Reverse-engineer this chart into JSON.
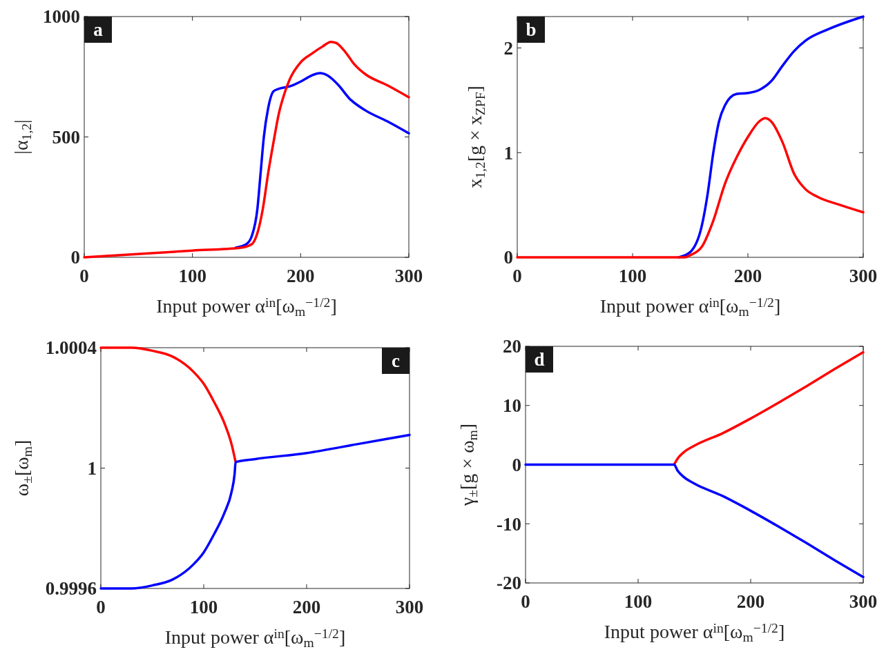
{
  "chart_data": [
    {
      "type": "line",
      "xlabel": "Input power α$^{in}$[ω$_{m}$$^{−1/2}$]",
      "ylabel": "|α$_{1,2}$|",
      "annotations": [
        "a"
      ],
      "xlim": [
        0,
        300
      ],
      "xticks": [
        0,
        100,
        200,
        300
      ],
      "ylim": [
        0,
        1000
      ],
      "yticks": [
        0,
        500,
        1000
      ],
      "grid": false,
      "legend": false,
      "series": [
        {
          "color": "#0000ff",
          "x": [
            140,
            150,
            155,
            160,
            163,
            166,
            170,
            175,
            180,
            190,
            200,
            210,
            218,
            225,
            235,
            245,
            260,
            280,
            300
          ],
          "values": [
            40,
            55,
            90,
            200,
            350,
            500,
            620,
            690,
            700,
            710,
            730,
            755,
            765,
            755,
            715,
            660,
            610,
            565,
            515
          ]
        },
        {
          "color": "#ff0000",
          "x": [
            0,
            100,
            145,
            155,
            160,
            165,
            170,
            175,
            180,
            185,
            190,
            200,
            210,
            220,
            228,
            233,
            240,
            250,
            260,
            280,
            300
          ],
          "values": [
            0,
            28,
            40,
            55,
            100,
            200,
            350,
            480,
            600,
            680,
            740,
            810,
            845,
            875,
            895,
            890,
            860,
            800,
            760,
            715,
            665
          ]
        }
      ]
    },
    {
      "type": "line",
      "xlabel": "Input power α$^{in}$[ω$_{m}$$^{−1/2}$]",
      "ylabel": "x$_{1,2}$[g × x$_{ZPF}$]",
      "annotations": [
        "b"
      ],
      "xlim": [
        0,
        300
      ],
      "xticks": [
        0,
        100,
        200,
        300
      ],
      "ylim": [
        0,
        2.3
      ],
      "yticks": [
        0,
        1,
        2
      ],
      "grid": false,
      "legend": false,
      "series": [
        {
          "color": "#0000ff",
          "x": [
            140,
            150,
            160,
            165,
            170,
            175,
            180,
            190,
            200,
            210,
            220,
            230,
            240,
            250,
            270,
            300
          ],
          "values": [
            0,
            0.05,
            0.3,
            0.6,
            1.0,
            1.3,
            1.45,
            1.56,
            1.57,
            1.6,
            1.68,
            1.83,
            1.97,
            2.07,
            2.18,
            2.3
          ]
        },
        {
          "color": "#ff0000",
          "x": [
            0,
            100,
            145,
            150,
            160,
            170,
            180,
            190,
            200,
            210,
            215,
            220,
            230,
            240,
            250,
            260,
            280,
            300
          ],
          "values": [
            0,
            0,
            0,
            0.02,
            0.1,
            0.35,
            0.7,
            0.95,
            1.15,
            1.3,
            1.33,
            1.3,
            1.1,
            0.8,
            0.65,
            0.58,
            0.5,
            0.43
          ]
        }
      ]
    },
    {
      "type": "line",
      "xlabel": "Input power α$^{in}$[ω$_{m}$$^{−1/2}$]",
      "ylabel": "ω$_{±}$[ω$_{m}$]",
      "annotations": [
        "c"
      ],
      "xlim": [
        0,
        300
      ],
      "xticks": [
        0,
        100,
        200,
        300
      ],
      "ylim": [
        0.9996,
        1.0004
      ],
      "yticks": [
        0.9996,
        1,
        1.0004
      ],
      "grid": false,
      "legend": false,
      "series": [
        {
          "color": "#ff0000",
          "x": [
            0,
            30,
            50,
            70,
            90,
            100,
            110,
            120,
            127,
            131
          ],
          "values": [
            1.0004,
            1.0004,
            1.00039,
            1.00037,
            1.00032,
            1.00028,
            1.00022,
            1.00015,
            1.00008,
            1.00002
          ]
        },
        {
          "color": "#0000ff",
          "x": [
            0,
            30,
            50,
            70,
            90,
            100,
            110,
            120,
            127,
            130,
            131,
            150,
            200,
            250,
            300
          ],
          "values": [
            0.9996,
            0.9996,
            0.99961,
            0.99963,
            0.99968,
            0.99972,
            0.99978,
            0.99985,
            0.99992,
            0.99998,
            1.00002,
            1.00003,
            1.00005,
            1.00008,
            1.00011
          ]
        }
      ]
    },
    {
      "type": "line",
      "xlabel": "Input power α$^{in}$[ω$_{m}$$^{−1/2}$]",
      "ylabel": "γ$_{±}$[g × ω$_{m}$]",
      "annotations": [
        "d"
      ],
      "xlim": [
        0,
        300
      ],
      "xticks": [
        0,
        100,
        200,
        300
      ],
      "ylim": [
        -20,
        20
      ],
      "yticks": [
        -20,
        -10,
        0,
        10,
        20
      ],
      "grid": false,
      "legend": false,
      "series": [
        {
          "color": "#ff0000",
          "x": [
            132,
            135,
            140,
            150,
            175,
            200,
            225,
            250,
            275,
            300
          ],
          "values": [
            0,
            1,
            2,
            3.2,
            5.3,
            7.8,
            10.5,
            13.3,
            16.2,
            19
          ]
        },
        {
          "color": "#0000ff",
          "x": [
            0,
            132,
            135,
            140,
            150,
            175,
            200,
            225,
            250,
            275,
            300
          ],
          "values": [
            0,
            0,
            -1,
            -2,
            -3.2,
            -5.3,
            -7.8,
            -10.5,
            -13.3,
            -16.2,
            -19
          ]
        }
      ]
    }
  ]
}
